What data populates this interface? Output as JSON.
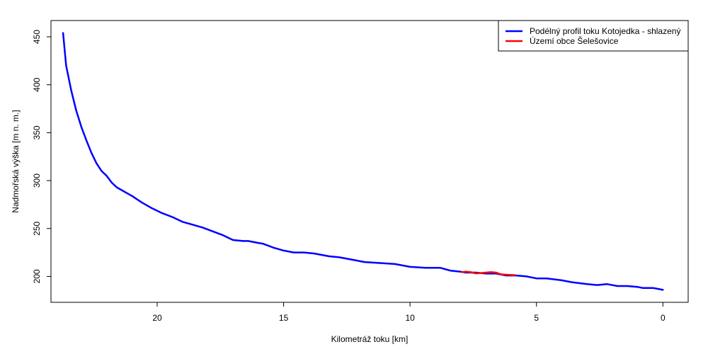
{
  "chart_data": {
    "type": "line",
    "title": "",
    "xlabel": "Kilometráž toku [km]",
    "ylabel": "Nadmořská výška [m n. m.]",
    "xlim": [
      24.2,
      -1.0
    ],
    "ylim": [
      173,
      467
    ],
    "x_reversed": true,
    "grid": false,
    "legend_position": "top-right",
    "x_ticks": [
      20,
      15,
      10,
      5,
      0
    ],
    "y_ticks": [
      200,
      250,
      300,
      350,
      400,
      450
    ],
    "series": [
      {
        "name": "Podélný profil toku Kotojedka - shlazený",
        "color": "#0000ff",
        "x": [
          23.72,
          23.6,
          23.4,
          23.2,
          23.0,
          22.8,
          22.6,
          22.4,
          22.2,
          22.0,
          21.8,
          21.6,
          21.4,
          21.2,
          21.0,
          20.6,
          20.2,
          19.8,
          19.4,
          19.0,
          18.6,
          18.2,
          17.8,
          17.4,
          17.0,
          16.6,
          16.4,
          16.0,
          15.8,
          15.4,
          15.0,
          14.6,
          14.2,
          13.8,
          13.2,
          12.8,
          12.2,
          11.8,
          11.2,
          10.6,
          10.0,
          9.4,
          8.8,
          8.4,
          8.0,
          7.8,
          7.4,
          7.0,
          6.6,
          6.2,
          5.8,
          5.4,
          5.0,
          4.6,
          4.0,
          3.6,
          3.0,
          2.6,
          2.2,
          1.8,
          1.4,
          1.0,
          0.8,
          0.4,
          0.2,
          0.0
        ],
        "y": [
          454,
          420,
          394,
          373,
          356,
          342,
          329,
          318,
          310,
          305,
          298,
          293,
          290,
          287,
          284,
          277,
          271,
          266,
          262,
          257,
          254,
          251,
          247,
          243,
          238,
          237,
          237,
          235,
          234,
          230,
          227,
          225,
          225,
          224,
          221,
          220,
          217,
          215,
          214,
          213,
          210,
          209,
          209,
          206,
          205,
          204,
          204,
          203,
          203,
          201,
          201,
          200,
          198,
          198,
          196,
          194,
          192,
          191,
          192,
          190,
          190,
          189,
          188,
          188,
          187,
          186
        ]
      },
      {
        "name": "Území obce Šelešovice",
        "color": "#ff0000",
        "x": [
          7.95,
          7.8,
          7.6,
          7.4,
          7.2,
          7.0,
          6.8,
          6.6,
          6.4,
          6.2,
          6.0,
          5.85
        ],
        "y": [
          204.5,
          205,
          204.5,
          203.2,
          203.5,
          204,
          204.5,
          204,
          202.2,
          201.8,
          201.5,
          201.4
        ]
      }
    ]
  }
}
